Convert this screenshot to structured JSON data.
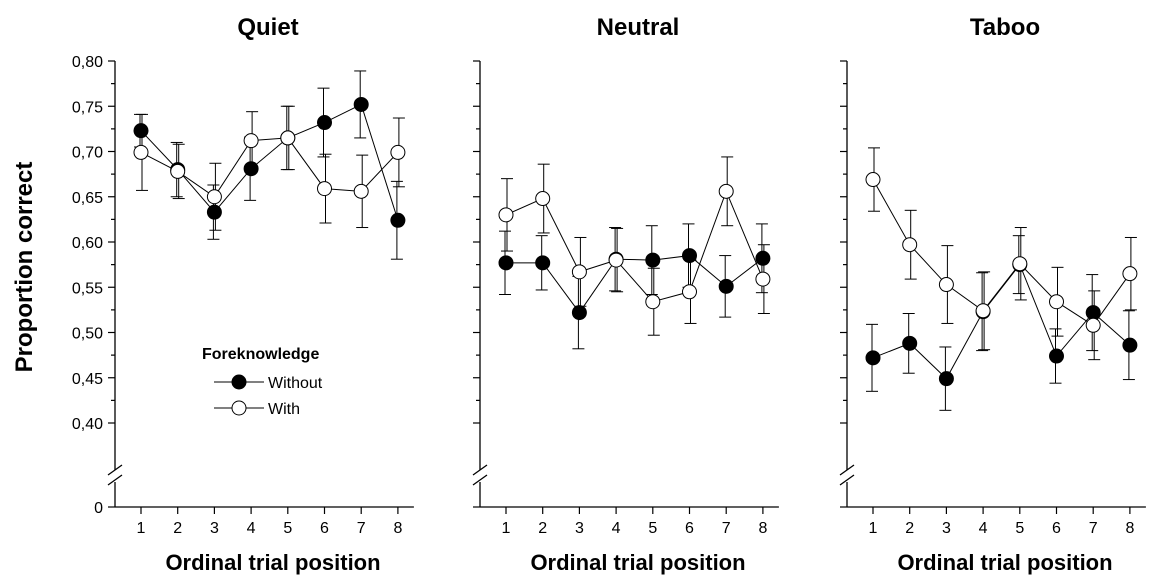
{
  "chart_data": [
    {
      "type": "line",
      "title": "Quiet",
      "xlabel": "Ordinal trial position",
      "ylabel": "Proportion correct",
      "x": [
        1,
        2,
        3,
        4,
        5,
        6,
        7,
        8
      ],
      "ylim": [
        0.4,
        0.8
      ],
      "yticks": [
        "0,80",
        "0,75",
        "0,70",
        "0,65",
        "0,60",
        "0,55",
        "0,50",
        "0,45",
        "0,40"
      ],
      "y_zero_label": "0",
      "axis_break": true,
      "legend": {
        "title": "Foreknowledge",
        "placement": "lower-left"
      },
      "series": [
        {
          "name": "Without",
          "marker": "filled-circle",
          "values": [
            0.723,
            0.68,
            0.633,
            0.681,
            0.715,
            0.732,
            0.752,
            0.624
          ],
          "errors": [
            0.018,
            0.03,
            0.03,
            0.035,
            0.035,
            0.038,
            0.037,
            0.043
          ]
        },
        {
          "name": "With",
          "marker": "open-circle",
          "values": [
            0.699,
            0.678,
            0.65,
            0.712,
            0.715,
            0.659,
            0.656,
            0.699
          ],
          "errors": [
            0.042,
            0.03,
            0.037,
            0.032,
            0.035,
            0.038,
            0.04,
            0.038
          ]
        }
      ]
    },
    {
      "type": "line",
      "title": "Neutral",
      "xlabel": "Ordinal trial position",
      "x": [
        1,
        2,
        3,
        4,
        5,
        6,
        7,
        8
      ],
      "ylim": [
        0.4,
        0.8
      ],
      "axis_break": true,
      "series": [
        {
          "name": "Without",
          "marker": "filled-circle",
          "values": [
            0.577,
            0.577,
            0.522,
            0.581,
            0.58,
            0.585,
            0.551,
            0.582
          ],
          "errors": [
            0.035,
            0.03,
            0.04,
            0.035,
            0.038,
            0.035,
            0.034,
            0.038
          ]
        },
        {
          "name": "With",
          "marker": "open-circle",
          "values": [
            0.63,
            0.648,
            0.567,
            0.58,
            0.534,
            0.545,
            0.656,
            0.559
          ],
          "errors": [
            0.04,
            0.038,
            0.038,
            0.035,
            0.037,
            0.035,
            0.038,
            0.038
          ]
        }
      ]
    },
    {
      "type": "line",
      "title": "Taboo",
      "xlabel": "Ordinal trial position",
      "x": [
        1,
        2,
        3,
        4,
        5,
        6,
        7,
        8
      ],
      "ylim": [
        0.4,
        0.8
      ],
      "axis_break": true,
      "series": [
        {
          "name": "Without",
          "marker": "filled-circle",
          "values": [
            0.472,
            0.488,
            0.449,
            0.523,
            0.575,
            0.474,
            0.522,
            0.486
          ],
          "errors": [
            0.037,
            0.033,
            0.035,
            0.043,
            0.032,
            0.03,
            0.042,
            0.038
          ]
        },
        {
          "name": "With",
          "marker": "open-circle",
          "values": [
            0.669,
            0.597,
            0.553,
            0.524,
            0.576,
            0.534,
            0.508,
            0.565
          ],
          "errors": [
            0.035,
            0.038,
            0.043,
            0.043,
            0.04,
            0.038,
            0.038,
            0.04
          ]
        }
      ]
    }
  ]
}
